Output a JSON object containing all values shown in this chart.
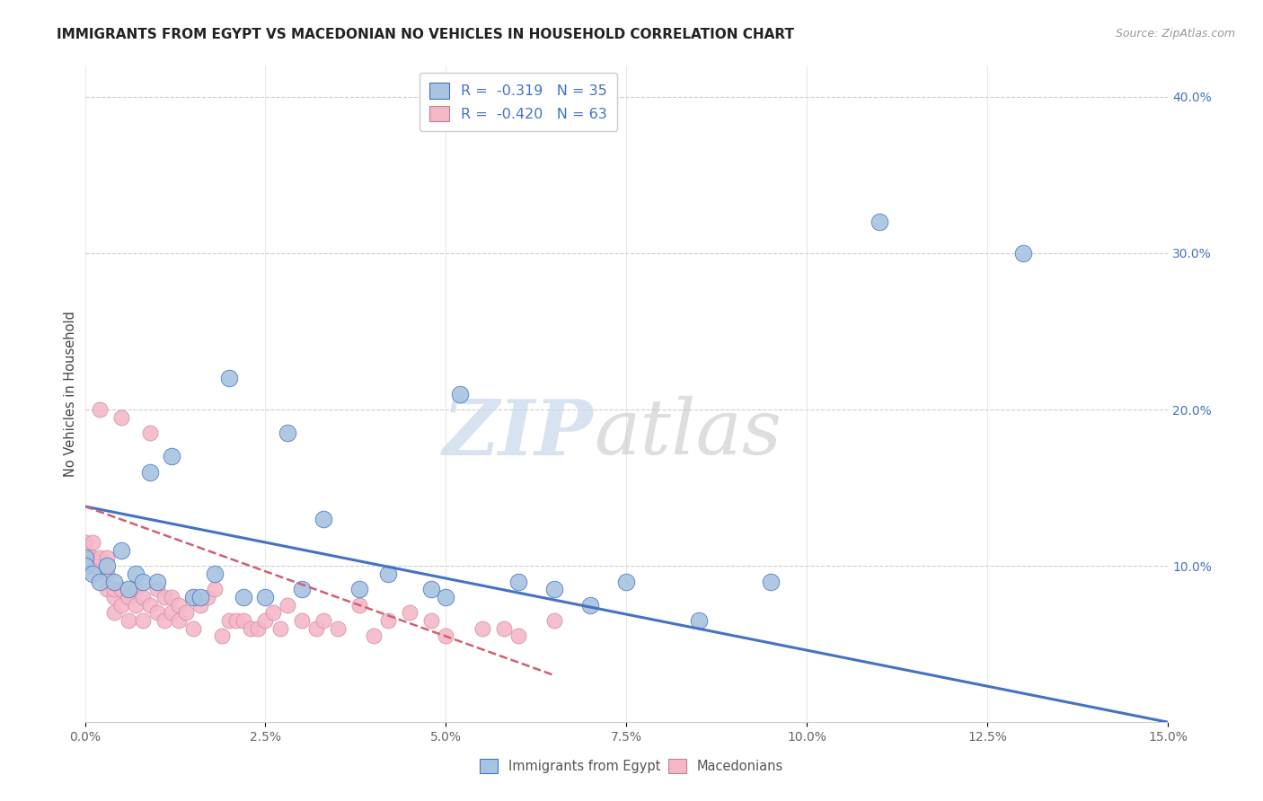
{
  "title": "IMMIGRANTS FROM EGYPT VS MACEDONIAN NO VEHICLES IN HOUSEHOLD CORRELATION CHART",
  "source": "Source: ZipAtlas.com",
  "ylabel": "No Vehicles in Household",
  "legend1_label": "Immigrants from Egypt",
  "legend2_label": "Macedonians",
  "r1": "-0.319",
  "n1": "35",
  "r2": "-0.420",
  "n2": "63",
  "color_egypt": "#a8c4e0",
  "color_mace": "#f5b8c8",
  "color_text_blue": "#4472c4",
  "color_line_egypt": "#4472c4",
  "color_line_mace": "#d06070",
  "watermark_zip": "ZIP",
  "watermark_atlas": "atlas",
  "egypt_x": [
    0.0,
    0.0,
    0.001,
    0.002,
    0.003,
    0.004,
    0.005,
    0.006,
    0.007,
    0.008,
    0.009,
    0.01,
    0.012,
    0.015,
    0.016,
    0.018,
    0.02,
    0.022,
    0.025,
    0.028,
    0.03,
    0.033,
    0.038,
    0.042,
    0.048,
    0.05,
    0.052,
    0.06,
    0.065,
    0.07,
    0.075,
    0.085,
    0.095,
    0.11,
    0.13
  ],
  "egypt_y": [
    0.105,
    0.1,
    0.095,
    0.09,
    0.1,
    0.09,
    0.11,
    0.085,
    0.095,
    0.09,
    0.16,
    0.09,
    0.17,
    0.08,
    0.08,
    0.095,
    0.22,
    0.08,
    0.08,
    0.185,
    0.085,
    0.13,
    0.085,
    0.095,
    0.085,
    0.08,
    0.21,
    0.09,
    0.085,
    0.075,
    0.09,
    0.065,
    0.09,
    0.32,
    0.3
  ],
  "mace_x": [
    0.0,
    0.0,
    0.0,
    0.001,
    0.001,
    0.001,
    0.002,
    0.002,
    0.003,
    0.003,
    0.003,
    0.004,
    0.004,
    0.004,
    0.005,
    0.005,
    0.005,
    0.006,
    0.006,
    0.007,
    0.007,
    0.008,
    0.008,
    0.009,
    0.009,
    0.01,
    0.01,
    0.011,
    0.011,
    0.012,
    0.012,
    0.013,
    0.013,
    0.014,
    0.015,
    0.015,
    0.016,
    0.017,
    0.018,
    0.019,
    0.02,
    0.021,
    0.022,
    0.023,
    0.024,
    0.025,
    0.026,
    0.027,
    0.028,
    0.03,
    0.032,
    0.033,
    0.035,
    0.038,
    0.04,
    0.042,
    0.045,
    0.048,
    0.05,
    0.055,
    0.058,
    0.06,
    0.065
  ],
  "mace_y": [
    0.115,
    0.11,
    0.105,
    0.115,
    0.105,
    0.1,
    0.2,
    0.105,
    0.085,
    0.105,
    0.095,
    0.08,
    0.085,
    0.07,
    0.195,
    0.085,
    0.075,
    0.08,
    0.065,
    0.085,
    0.075,
    0.08,
    0.065,
    0.185,
    0.075,
    0.085,
    0.07,
    0.08,
    0.065,
    0.08,
    0.07,
    0.075,
    0.065,
    0.07,
    0.08,
    0.06,
    0.075,
    0.08,
    0.085,
    0.055,
    0.065,
    0.065,
    0.065,
    0.06,
    0.06,
    0.065,
    0.07,
    0.06,
    0.075,
    0.065,
    0.06,
    0.065,
    0.06,
    0.075,
    0.055,
    0.065,
    0.07,
    0.065,
    0.055,
    0.06,
    0.06,
    0.055,
    0.065
  ],
  "xlim": [
    0.0,
    0.15
  ],
  "ylim": [
    0.0,
    0.42
  ],
  "egypt_line_x": [
    0.0,
    0.15
  ],
  "egypt_line_y": [
    0.138,
    0.0
  ],
  "mace_line_x": [
    0.0,
    0.065
  ],
  "mace_line_y": [
    0.138,
    0.03
  ]
}
